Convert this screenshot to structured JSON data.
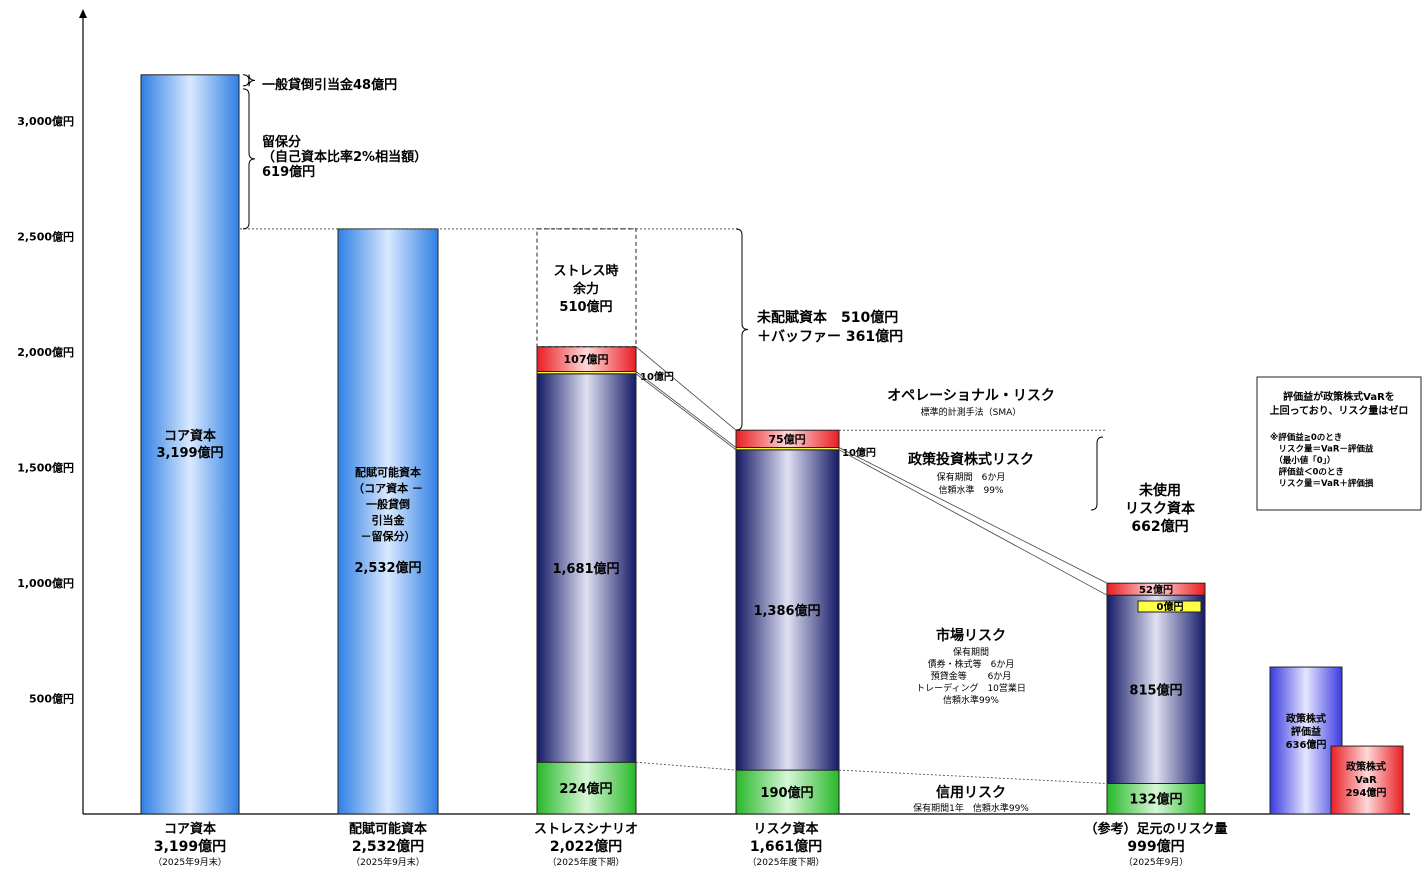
{
  "chart_data": {
    "type": "bar",
    "ylim": [
      0,
      3400
    ],
    "y_ticks": [
      {
        "value": 500,
        "label": "500億円"
      },
      {
        "value": 1000,
        "label": "1,000億円"
      },
      {
        "value": 1500,
        "label": "1,500億円"
      },
      {
        "value": 2000,
        "label": "2,000億円"
      },
      {
        "value": 2500,
        "label": "2,500億円"
      },
      {
        "value": 3000,
        "label": "3,000億円"
      }
    ],
    "categories": [
      {
        "l1": "コア資本",
        "l2": "3,199億円",
        "l3": "（2025年9月末）"
      },
      {
        "l1": "配賦可能資本",
        "l2": "2,532億円",
        "l3": "（2025年9月末）"
      },
      {
        "l1": "ストレスシナリオ",
        "l2": "2,022億円",
        "l3": "（2025年度下期）"
      },
      {
        "l1": "リスク資本",
        "l2": "1,661億円",
        "l3": "（2025年度下期）"
      },
      {
        "l1": "（参考）足元のリスク量",
        "l2": "999億円",
        "l3": "（2025年9月）"
      }
    ],
    "bars": {
      "core": {
        "value": 3199,
        "label": [
          "コア資本",
          "3,199億円"
        ]
      },
      "allocable": {
        "value": 2532,
        "label": [
          "配賦可能資本",
          "（コア資本 －",
          "一般貸倒",
          "引当金",
          "－留保分）",
          "",
          "2,532億円"
        ]
      },
      "stress": {
        "credit": 224,
        "market": 1681,
        "equity": 10,
        "operational": 107,
        "margin": 510,
        "labels": {
          "credit": "224億円",
          "market": "1,681億円",
          "equity": "10億円",
          "operational": "107億円",
          "margin": [
            "ストレス時",
            "余力",
            "510億円"
          ]
        }
      },
      "risk_capital": {
        "credit": 190,
        "market": 1386,
        "equity": 10,
        "operational": 75,
        "labels": {
          "credit": "190億円",
          "market": "1,386億円",
          "equity": "10億円",
          "operational": "75億円"
        }
      },
      "current_risk": {
        "credit": 132,
        "market": 815,
        "equity": 0,
        "operational": 52,
        "labels": {
          "credit": "132億円",
          "market": "815億円",
          "equity": "0億円",
          "operational": "52億円"
        }
      },
      "equity_gain": {
        "value": 636,
        "label": [
          "政策株式",
          "評価益",
          "636億円"
        ]
      },
      "equity_var": {
        "value": 294,
        "label": [
          "政策株式",
          "VaR",
          "294億円"
        ]
      }
    },
    "annotations": {
      "general_allowance": "一般貸倒引当金48億円",
      "retained": [
        "留保分",
        "（自己資本比率2%相当額）",
        "619億円"
      ],
      "unallocated": [
        "未配賦資本　510億円",
        "＋バッファー  361億円"
      ],
      "unused": [
        "未使用",
        "リスク資本",
        "662億円"
      ],
      "operational_title": "オペレーショナル・リスク",
      "operational_sub": "標準的計測手法（SMA）",
      "equity_title": "政策投資株式リスク",
      "equity_sub": [
        "保有期間　6か月",
        "信頼水準　99%"
      ],
      "market_title": "市場リスク",
      "market_sub": [
        "保有期間",
        "債券・株式等　6か月",
        "預貸金等　　  6か月",
        "トレーディング　10営業日",
        "信頼水準99%"
      ],
      "credit_title": "信用リスク",
      "credit_sub": "保有期間1年　信頼水準99%"
    },
    "note_box": [
      "評価益が政策株式VaRを",
      "上回っており、リスク量はゼロ",
      "",
      "※評価益≧0のとき",
      "　リスク量＝VaR－評価益",
      "　（最小値「0」）",
      "　評価益＜0のとき",
      "　リスク量＝VaR＋評価損"
    ],
    "colors": {
      "core_bar": "#4a90e8",
      "market": "#1a1f6e",
      "operational": "#e8282c",
      "equity_risk": "#ffff33",
      "credit": "#2ebd2e",
      "equity_gain": "#4646e6",
      "equity_var": "#e8282c"
    }
  }
}
